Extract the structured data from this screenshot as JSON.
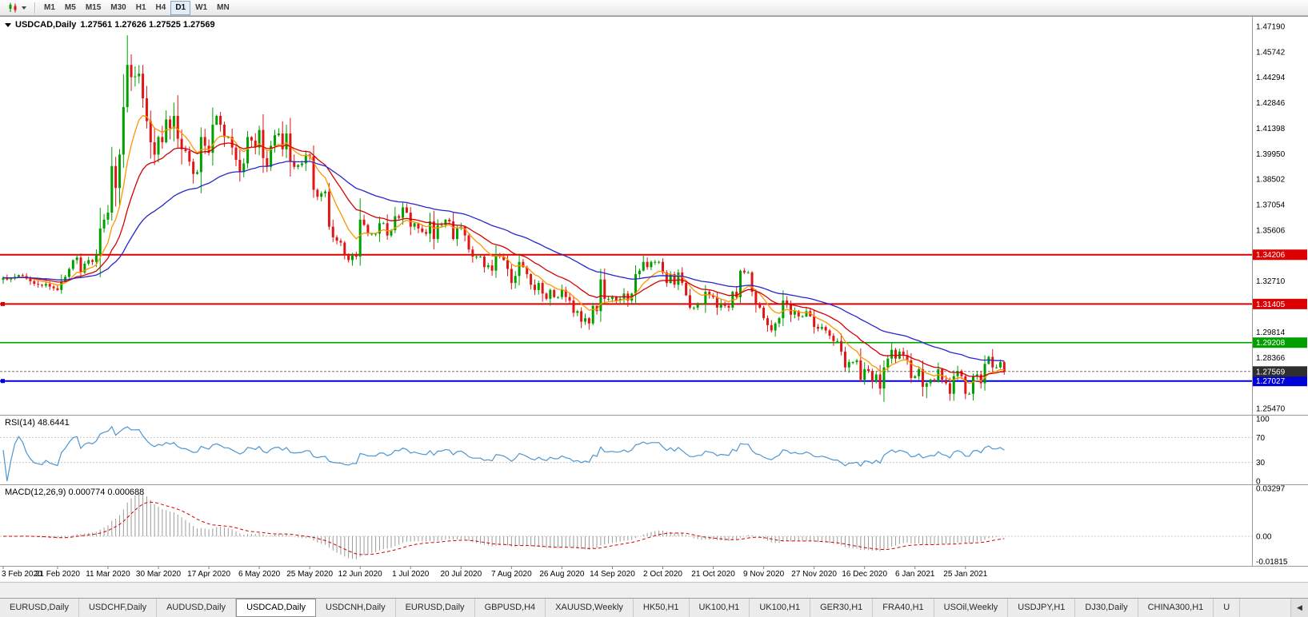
{
  "toolbar": {
    "timeframes": [
      {
        "label": "M1"
      },
      {
        "label": "M5"
      },
      {
        "label": "M15"
      },
      {
        "label": "M30"
      },
      {
        "label": "H1"
      },
      {
        "label": "H4"
      },
      {
        "label": "D1",
        "active": true
      },
      {
        "label": "W1"
      },
      {
        "label": "MN"
      }
    ]
  },
  "chart": {
    "title": "USDCAD,Daily",
    "ohlc_text": "1.27561 1.27626 1.27525 1.27569",
    "price_axis": {
      "ticks": [
        {
          "value": 1.4719,
          "label": "1.47190"
        },
        {
          "value": 1.45742,
          "label": "1.45742"
        },
        {
          "value": 1.44294,
          "label": "1.44294"
        },
        {
          "value": 1.42846,
          "label": "1.42846"
        },
        {
          "value": 1.41398,
          "label": "1.41398"
        },
        {
          "value": 1.3995,
          "label": "1.39950"
        },
        {
          "value": 1.38502,
          "label": "1.38502"
        },
        {
          "value": 1.37054,
          "label": "1.37054"
        },
        {
          "value": 1.35606,
          "label": "1.35606"
        },
        {
          "value": 1.3271,
          "label": "1.32710"
        },
        {
          "value": 1.29814,
          "label": "1.29814"
        },
        {
          "value": 1.28366,
          "label": "1.28366"
        },
        {
          "value": 1.2547,
          "label": "1.25470"
        }
      ]
    },
    "hlines": [
      {
        "value": 1.34206,
        "label": "1.34206",
        "color": "#dd0000",
        "width": 2
      },
      {
        "value": 1.31405,
        "label": "1.31405",
        "color": "#dd0000",
        "width": 2,
        "handle": true
      },
      {
        "value": 1.29208,
        "label": "1.29208",
        "color": "#00a000",
        "width": 1.6
      },
      {
        "value": 1.27027,
        "label": "1.27027",
        "color": "#0000d8",
        "width": 2,
        "handle": true
      }
    ],
    "current_price": {
      "value": 1.27569,
      "label": "1.27569",
      "badge_color": "#2e2e2e"
    },
    "dates": [
      {
        "label": "3 Feb 2020",
        "bar": 0
      },
      {
        "label": "21 Feb 2020",
        "bar": 14
      },
      {
        "label": "11 Mar 2020",
        "bar": 27
      },
      {
        "label": "30 Mar 2020",
        "bar": 40
      },
      {
        "label": "17 Apr 2020",
        "bar": 53
      },
      {
        "label": "6 May 2020",
        "bar": 66
      },
      {
        "label": "25 May 2020",
        "bar": 79
      },
      {
        "label": "12 Jun 2020",
        "bar": 92
      },
      {
        "label": "1 Jul 2020",
        "bar": 105
      },
      {
        "label": "20 Jul 2020",
        "bar": 118
      },
      {
        "label": "7 Aug 2020",
        "bar": 131
      },
      {
        "label": "26 Aug 2020",
        "bar": 144
      },
      {
        "label": "14 Sep 2020",
        "bar": 157
      },
      {
        "label": "2 Oct 2020",
        "bar": 170
      },
      {
        "label": "21 Oct 2020",
        "bar": 183
      },
      {
        "label": "9 Nov 2020",
        "bar": 196
      },
      {
        "label": "27 Nov 2020",
        "bar": 209
      },
      {
        "label": "16 Dec 2020",
        "bar": 222
      },
      {
        "label": "6 Jan 2021",
        "bar": 235
      },
      {
        "label": "25 Jan 2021",
        "bar": 248
      }
    ]
  },
  "rsi": {
    "label": "RSI(14) 48.6441",
    "period": 14,
    "current": 48.6441,
    "color": "#4d96d2",
    "levels": [
      70,
      30
    ],
    "scale": [
      {
        "value": 100,
        "label": "100"
      },
      {
        "value": 70,
        "label": "70"
      },
      {
        "value": 30,
        "label": "30"
      },
      {
        "value": 0,
        "label": "0"
      }
    ]
  },
  "macd": {
    "label": "MACD(12,26,9) 0.000774 0.000688",
    "main_current": 0.000774,
    "signal_current": 0.000688,
    "histogram_color": "#9b9b9b",
    "signal_color": "#d40000",
    "range": [
      -0.01815,
      0.03297
    ],
    "scale": [
      {
        "value": 0.03297,
        "label": "0.03297"
      },
      {
        "value": 0,
        "label": "0.00"
      },
      {
        "value": -0.01815,
        "label": "-0.01815"
      }
    ]
  },
  "chart_data": {
    "type": "candlestick",
    "symbol": "USDCAD",
    "timeframe": "Daily",
    "up_color": "#00a000",
    "down_color": "#e01515",
    "moving_averages": [
      {
        "name": "fast",
        "period": 9,
        "color": "#ff9500"
      },
      {
        "name": "medium",
        "period": 21,
        "color": "#d40000"
      },
      {
        "name": "slow",
        "period": 50,
        "color": "#2626cc"
      }
    ],
    "closes": [
      1.329,
      1.328,
      1.3285,
      1.3295,
      1.3305,
      1.33,
      1.3285,
      1.327,
      1.3255,
      1.325,
      1.3245,
      1.3255,
      1.324,
      1.323,
      1.322,
      1.327,
      1.3295,
      1.334,
      1.339,
      1.3405,
      1.332,
      1.337,
      1.339,
      1.338,
      1.342,
      1.357,
      1.362,
      1.366,
      1.3925,
      1.38,
      1.399,
      1.426,
      1.45,
      1.443,
      1.4435,
      1.445,
      1.431,
      1.418,
      1.406,
      1.399,
      1.409,
      1.406,
      1.419,
      1.414,
      1.421,
      1.408,
      1.402,
      1.401,
      1.395,
      1.388,
      1.389,
      1.409,
      1.404,
      1.4,
      1.416,
      1.421,
      1.416,
      1.409,
      1.409,
      1.403,
      1.396,
      1.389,
      1.394,
      1.409,
      1.407,
      1.403,
      1.413,
      1.397,
      1.392,
      1.404,
      1.41,
      1.411,
      1.402,
      1.411,
      1.395,
      1.392,
      1.393,
      1.394,
      1.399,
      1.398,
      1.379,
      1.375,
      1.377,
      1.378,
      1.358,
      1.352,
      1.35,
      1.349,
      1.342,
      1.339,
      1.342,
      1.341,
      1.362,
      1.359,
      1.354,
      1.354,
      1.354,
      1.36,
      1.36,
      1.353,
      1.356,
      1.364,
      1.363,
      1.369,
      1.366,
      1.358,
      1.36,
      1.357,
      1.355,
      1.354,
      1.361,
      1.351,
      1.359,
      1.359,
      1.362,
      1.361,
      1.351,
      1.357,
      1.358,
      1.353,
      1.345,
      1.341,
      1.341,
      1.341,
      1.335,
      1.336,
      1.333,
      1.342,
      1.341,
      1.339,
      1.334,
      1.326,
      1.33,
      1.338,
      1.335,
      1.331,
      1.325,
      1.322,
      1.326,
      1.32,
      1.317,
      1.322,
      1.318,
      1.318,
      1.322,
      1.318,
      1.316,
      1.309,
      1.31,
      1.304,
      1.306,
      1.303,
      1.313,
      1.31,
      1.328,
      1.317,
      1.317,
      1.318,
      1.316,
      1.317,
      1.32,
      1.316,
      1.32,
      1.331,
      1.333,
      1.338,
      1.335,
      1.338,
      1.338,
      1.338,
      1.332,
      1.326,
      1.331,
      1.325,
      1.332,
      1.326,
      1.319,
      1.312,
      1.312,
      1.314,
      1.314,
      1.321,
      1.319,
      1.318,
      1.312,
      1.314,
      1.313,
      1.312,
      1.321,
      1.318,
      1.333,
      1.332,
      1.332,
      1.321,
      1.314,
      1.312,
      1.306,
      1.302,
      1.299,
      1.303,
      1.306,
      1.316,
      1.314,
      1.308,
      1.31,
      1.307,
      1.307,
      1.31,
      1.307,
      1.301,
      1.3,
      1.301,
      1.299,
      1.296,
      1.293,
      1.293,
      1.287,
      1.278,
      1.281,
      1.281,
      1.282,
      1.271,
      1.277,
      1.276,
      1.27,
      1.274,
      1.266,
      1.278,
      1.283,
      1.288,
      1.283,
      1.287,
      1.285,
      1.282,
      1.272,
      1.273,
      1.277,
      1.267,
      1.269,
      1.271,
      1.27,
      1.277,
      1.271,
      1.269,
      1.263,
      1.273,
      1.276,
      1.273,
      1.263,
      1.263,
      1.273,
      1.274,
      1.269,
      1.28,
      1.284,
      1.278,
      1.278,
      1.281,
      1.2757
    ],
    "wick_overrides": [
      {
        "i": 32,
        "high": 1.4668
      },
      {
        "i": 33,
        "high": 1.456
      },
      {
        "i": 151,
        "low": 1.2994
      },
      {
        "i": 226,
        "low": 1.2625
      },
      {
        "i": 238,
        "low": 1.2605
      },
      {
        "i": 244,
        "low": 1.259
      },
      {
        "i": 248,
        "low": 1.26
      }
    ]
  },
  "tabs": {
    "scroll_left_glyph": "◀",
    "items": [
      {
        "label": "EURUSD,Daily"
      },
      {
        "label": "USDCHF,Daily"
      },
      {
        "label": "AUDUSD,Daily"
      },
      {
        "label": "USDCAD,Daily",
        "active": true
      },
      {
        "label": "USDCNH,Daily"
      },
      {
        "label": "EURUSD,Daily"
      },
      {
        "label": "GBPUSD,H4"
      },
      {
        "label": "XAUUSD,Weekly"
      },
      {
        "label": "HK50,H1"
      },
      {
        "label": "UK100,H1"
      },
      {
        "label": "UK100,H1"
      },
      {
        "label": "GER30,H1"
      },
      {
        "label": "FRA40,H1"
      },
      {
        "label": "USOil,Weekly"
      },
      {
        "label": "USDJPY,H1"
      },
      {
        "label": "DJ30,Daily"
      },
      {
        "label": "CHINA300,H1"
      },
      {
        "label": "U"
      }
    ]
  }
}
